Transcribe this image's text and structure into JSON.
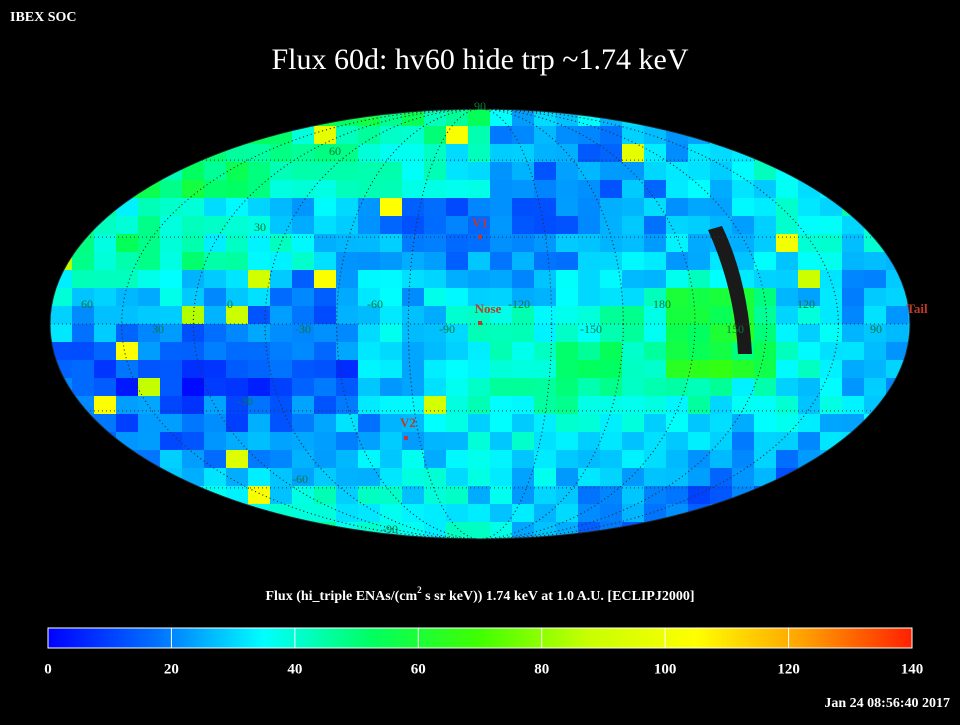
{
  "header": {
    "source": "IBEX SOC",
    "title": "Flux   60d: hv60 hide trp ~1.74 keV"
  },
  "map": {
    "lat_labels": [
      "90",
      "60",
      "30",
      "-30",
      "-60",
      "-90"
    ],
    "lon_labels": [
      "60",
      "30",
      "0",
      "-30",
      "-60",
      "-90",
      "-120",
      "-150",
      "180",
      "150",
      "120",
      "90"
    ],
    "markers": [
      {
        "label": "V1"
      },
      {
        "label": "Nose"
      },
      {
        "label": "V2"
      },
      {
        "label": "Tail"
      }
    ],
    "grid_color": "#333333",
    "marker_color": "#c0392b"
  },
  "colorbar": {
    "label_parts": [
      "Flux (hi_triple ENAs/(cm",
      "2",
      " s sr keV))  1.74 keV at 1.0 A.U. [ECLIPJ2000]"
    ],
    "lim": [
      0,
      140
    ],
    "ticks": [
      0,
      20,
      40,
      60,
      80,
      100,
      120,
      140
    ],
    "colors": [
      "#0000ff",
      "#0070ff",
      "#00ffff",
      "#00ff60",
      "#40ff00",
      "#c8ff00",
      "#ffff00",
      "#ffa000",
      "#ff2000"
    ]
  },
  "footer": {
    "timestamp": "Jan 24 08:56:40 2017"
  }
}
